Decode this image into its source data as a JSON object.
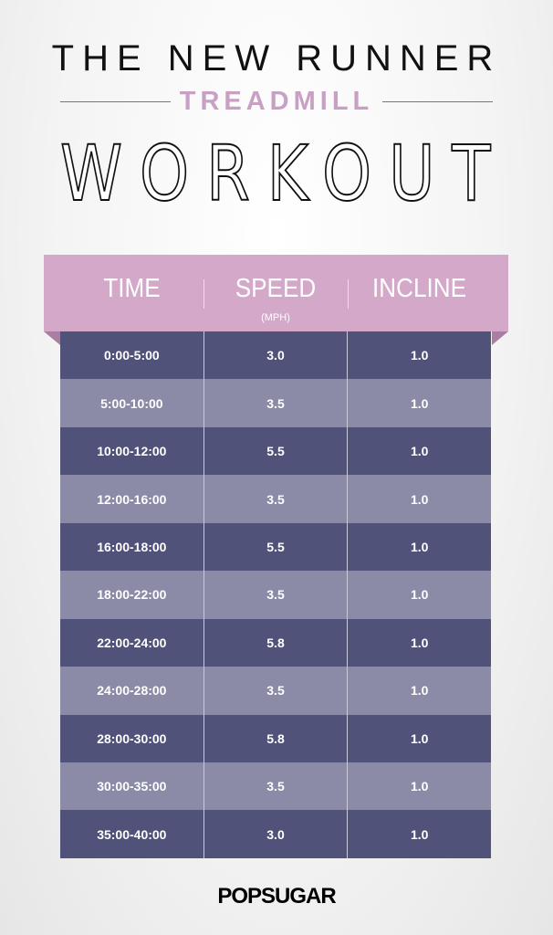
{
  "title": {
    "line1": "THE NEW RUNNER",
    "line2": "TREADMILL",
    "line3": "WORKOUT"
  },
  "colors": {
    "accent_pink": "#d3a8c9",
    "dark_row": "#51527a",
    "light_row": "#8b8aa7"
  },
  "table": {
    "headers": [
      "TIME",
      "SPEED",
      "INCLINE"
    ],
    "speed_unit": "(MPH)",
    "rows": [
      [
        "0:00-5:00",
        "3.0",
        "1.0"
      ],
      [
        "5:00-10:00",
        "3.5",
        "1.0"
      ],
      [
        "10:00-12:00",
        "5.5",
        "1.0"
      ],
      [
        "12:00-16:00",
        "3.5",
        "1.0"
      ],
      [
        "16:00-18:00",
        "5.5",
        "1.0"
      ],
      [
        "18:00-22:00",
        "3.5",
        "1.0"
      ],
      [
        "22:00-24:00",
        "5.8",
        "1.0"
      ],
      [
        "24:00-28:00",
        "3.5",
        "1.0"
      ],
      [
        "28:00-30:00",
        "5.8",
        "1.0"
      ],
      [
        "30:00-35:00",
        "3.5",
        "1.0"
      ],
      [
        "35:00-40:00",
        "3.0",
        "1.0"
      ]
    ]
  },
  "logo": "POPSUGAR"
}
